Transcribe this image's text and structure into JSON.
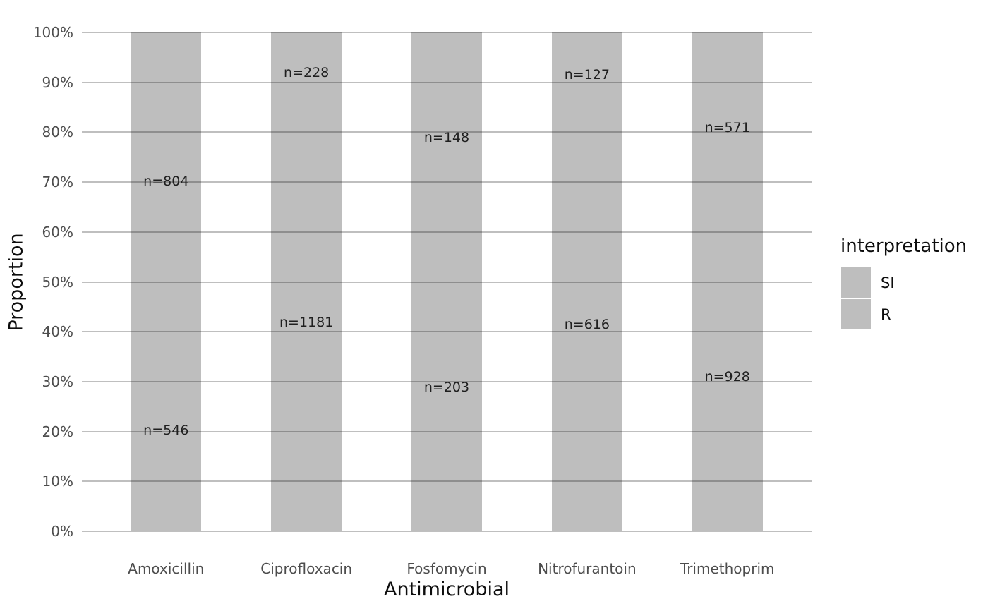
{
  "figure": {
    "background": "#ffffff"
  },
  "colors": {
    "bar_fill": "#bebebe",
    "grid_line": "rgba(0,0,0,0.25)",
    "tick_text": "#4d4d4d",
    "bar_label_text": "#1f1f1f",
    "title_text": "#0d0d0d"
  },
  "chart_data": {
    "type": "bar",
    "variant": "stacked-proportion",
    "orientation": "vertical",
    "title": "",
    "xlabel": "Antimicrobial",
    "ylabel": "Proportion",
    "categories": [
      "Amoxicillin",
      "Ciprofloxacin",
      "Fosfomycin",
      "Nitrofurantoin",
      "Trimethoprim"
    ],
    "series": [
      {
        "name": "SI",
        "stack_position": "top",
        "color": "#bebebe",
        "values": [
          804,
          228,
          148,
          127,
          571
        ],
        "labels": [
          "n=804",
          "n=228",
          "n=148",
          "n=127",
          "n=571"
        ]
      },
      {
        "name": "R",
        "stack_position": "bottom",
        "color": "#bebebe",
        "values": [
          546,
          1181,
          203,
          616,
          928
        ],
        "labels": [
          "n=546",
          "n=1181",
          "n=203",
          "n=616",
          "n=928"
        ]
      }
    ],
    "y_ticks": [
      "0%",
      "10%",
      "20%",
      "30%",
      "40%",
      "50%",
      "60%",
      "70%",
      "80%",
      "90%",
      "100%"
    ],
    "ylim": [
      0,
      1
    ],
    "grid": {
      "horizontal_major": true,
      "vertical": false,
      "grid_above_bars": true
    },
    "legend": {
      "title": "interpretation",
      "position": "right",
      "entries": [
        {
          "label": "SI",
          "color": "#bebebe"
        },
        {
          "label": "R",
          "color": "#bebebe"
        }
      ]
    }
  }
}
